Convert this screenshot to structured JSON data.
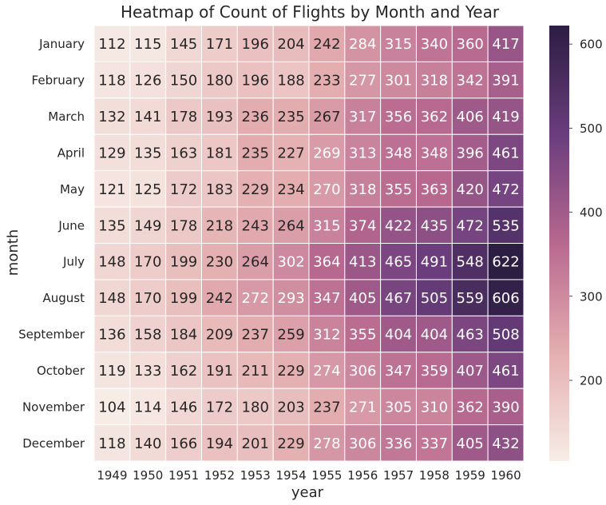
{
  "chart_data": {
    "type": "heatmap",
    "title": "Heatmap of Count of Flights by Month and Year",
    "xlabel": "year",
    "ylabel": "month",
    "x_categories": [
      "1949",
      "1950",
      "1951",
      "1952",
      "1953",
      "1954",
      "1955",
      "1956",
      "1957",
      "1958",
      "1959",
      "1960"
    ],
    "y_categories": [
      "January",
      "February",
      "March",
      "April",
      "May",
      "June",
      "July",
      "August",
      "September",
      "October",
      "November",
      "December"
    ],
    "values": [
      [
        112,
        115,
        145,
        171,
        196,
        204,
        242,
        284,
        315,
        340,
        360,
        417
      ],
      [
        118,
        126,
        150,
        180,
        196,
        188,
        233,
        277,
        301,
        318,
        342,
        391
      ],
      [
        132,
        141,
        178,
        193,
        236,
        235,
        267,
        317,
        356,
        362,
        406,
        419
      ],
      [
        129,
        135,
        163,
        181,
        235,
        227,
        269,
        313,
        348,
        348,
        396,
        461
      ],
      [
        121,
        125,
        172,
        183,
        229,
        234,
        270,
        318,
        355,
        363,
        420,
        472
      ],
      [
        135,
        149,
        178,
        218,
        243,
        264,
        315,
        374,
        422,
        435,
        472,
        535
      ],
      [
        148,
        170,
        199,
        230,
        264,
        302,
        364,
        413,
        465,
        491,
        548,
        622
      ],
      [
        148,
        170,
        199,
        242,
        272,
        293,
        347,
        405,
        467,
        505,
        559,
        606
      ],
      [
        136,
        158,
        184,
        209,
        237,
        259,
        312,
        355,
        404,
        404,
        463,
        508
      ],
      [
        119,
        133,
        162,
        191,
        211,
        229,
        274,
        306,
        347,
        359,
        407,
        461
      ],
      [
        104,
        114,
        146,
        172,
        180,
        203,
        237,
        271,
        305,
        310,
        362,
        390
      ],
      [
        118,
        140,
        166,
        194,
        201,
        229,
        278,
        306,
        336,
        337,
        405,
        432
      ]
    ],
    "annotated": true,
    "colorbar": {
      "min": 104,
      "max": 622,
      "ticks": [
        200,
        300,
        400,
        500,
        600
      ]
    },
    "colors": {
      "low": "#f7ece6",
      "mid_light": "#e4aeb0",
      "mid": "#b8688f",
      "mid_dark": "#6a3d7d",
      "high": "#2c1d42",
      "cell_border": "#ffffff"
    }
  }
}
